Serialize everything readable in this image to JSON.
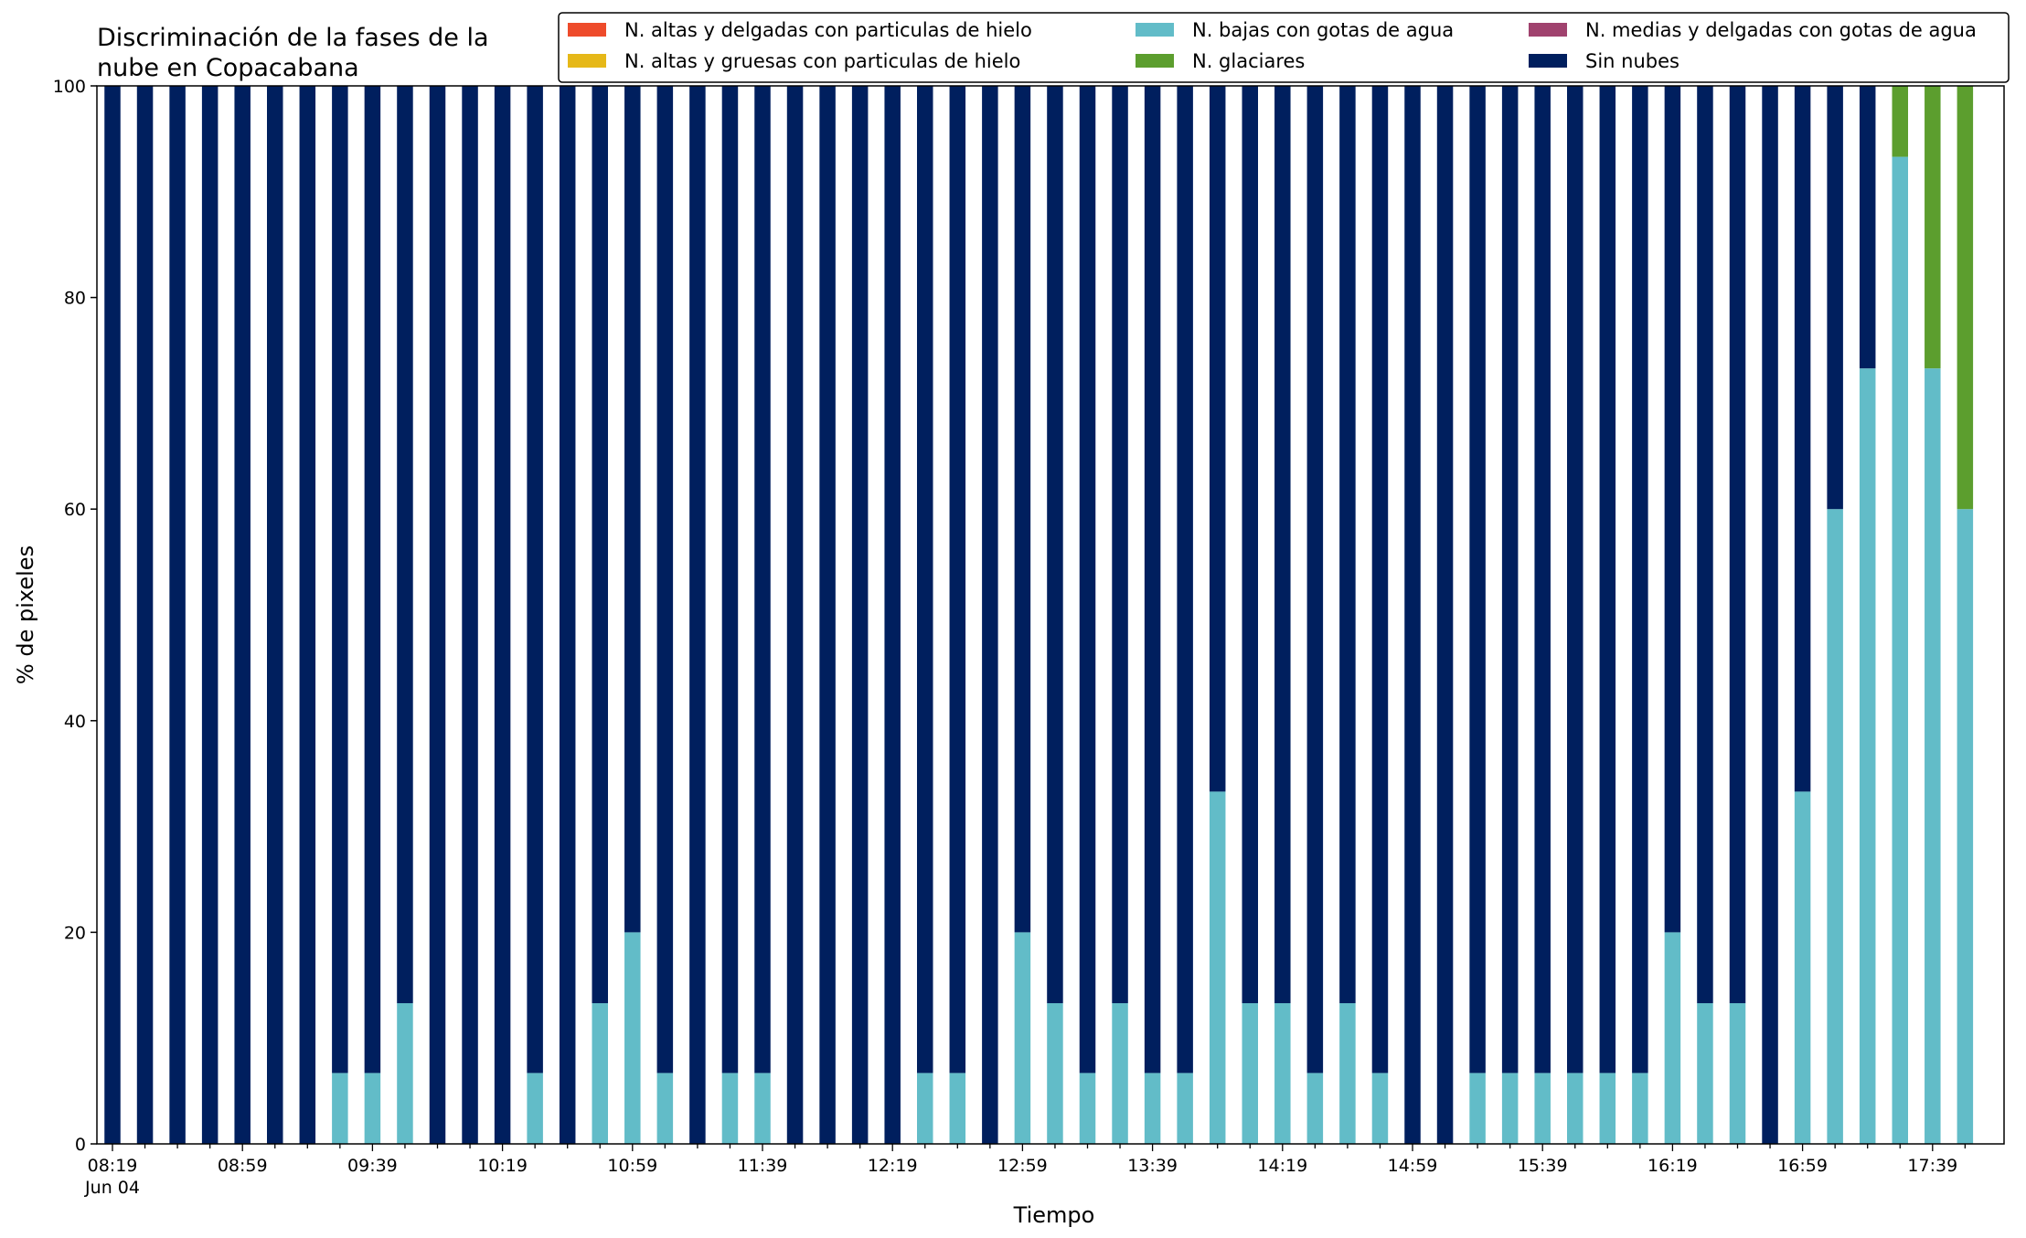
{
  "chart_data": {
    "type": "bar",
    "stacked": true,
    "title_lines": [
      "Discriminación de la fases de la",
      "nube en Copacabana"
    ],
    "xlabel": "Tiempo",
    "ylabel": "% de pixeles",
    "ylim": [
      0,
      100
    ],
    "yticks": [
      "0",
      "20",
      "40",
      "60",
      "80",
      "100"
    ],
    "grid": false,
    "legend_position": "top-right",
    "date_label": "Jun 04",
    "x_tick_labels": [
      "08:19",
      "08:59",
      "09:39",
      "10:19",
      "10:59",
      "11:39",
      "12:19",
      "12:59",
      "13:39",
      "14:19",
      "14:59",
      "15:39",
      "16:19",
      "16:59",
      "17:39"
    ],
    "categories": [
      "08:19",
      "08:29",
      "08:39",
      "08:49",
      "08:59",
      "09:09",
      "09:19",
      "09:29",
      "09:39",
      "09:49",
      "09:59",
      "10:09",
      "10:19",
      "10:29",
      "10:39",
      "10:49",
      "10:59",
      "11:09",
      "11:19",
      "11:29",
      "11:39",
      "11:49",
      "11:59",
      "12:09",
      "12:19",
      "12:29",
      "12:39",
      "12:49",
      "12:59",
      "13:09",
      "13:19",
      "13:29",
      "13:39",
      "13:49",
      "13:59",
      "14:09",
      "14:19",
      "14:29",
      "14:39",
      "14:49",
      "14:59",
      "15:09",
      "15:19",
      "15:29",
      "15:39",
      "15:49",
      "15:59",
      "16:09",
      "16:19",
      "16:29",
      "16:39",
      "16:49",
      "16:59",
      "17:09",
      "17:19",
      "17:29",
      "17:39",
      "17:49"
    ],
    "series": [
      {
        "name": "N. altas y delgadas con particulas de hielo",
        "color": "#ee4b2b",
        "values": [
          0,
          0,
          0,
          0,
          0,
          0,
          0,
          0,
          0,
          0,
          0,
          0,
          0,
          0,
          0,
          0,
          0,
          0,
          0,
          0,
          0,
          0,
          0,
          0,
          0,
          0,
          0,
          0,
          0,
          0,
          0,
          0,
          0,
          0,
          0,
          0,
          0,
          0,
          0,
          0,
          0,
          0,
          0,
          0,
          0,
          0,
          0,
          0,
          0,
          0,
          0,
          0,
          0,
          0,
          0,
          0,
          0,
          0
        ]
      },
      {
        "name": "N. altas y gruesas con particulas de hielo",
        "color": "#e6b818",
        "values": [
          0,
          0,
          0,
          0,
          0,
          0,
          0,
          0,
          0,
          0,
          0,
          0,
          0,
          0,
          0,
          0,
          0,
          0,
          0,
          0,
          0,
          0,
          0,
          0,
          0,
          0,
          0,
          0,
          0,
          0,
          0,
          0,
          0,
          0,
          0,
          0,
          0,
          0,
          0,
          0,
          0,
          0,
          0,
          0,
          0,
          0,
          0,
          0,
          0,
          0,
          0,
          0,
          0,
          0,
          0,
          0,
          0,
          0
        ]
      },
      {
        "name": "N. bajas con gotas de agua",
        "color": "#62bcc8",
        "values": [
          0,
          0,
          0,
          0,
          0,
          0,
          0,
          6.7,
          6.7,
          13.3,
          0,
          0,
          0,
          6.7,
          0,
          13.3,
          20,
          6.7,
          0,
          6.7,
          6.7,
          0,
          0,
          0,
          0,
          6.7,
          6.7,
          0,
          20,
          13.3,
          6.7,
          13.3,
          6.7,
          6.7,
          33.3,
          13.3,
          13.3,
          6.7,
          13.3,
          6.7,
          0,
          0,
          6.7,
          6.7,
          6.7,
          6.7,
          6.7,
          6.7,
          20,
          13.3,
          13.3,
          0,
          33.3,
          60,
          73.3,
          93.3,
          73.3,
          60
        ]
      },
      {
        "name": "N. glaciares",
        "color": "#5c9e2e",
        "values": [
          0,
          0,
          0,
          0,
          0,
          0,
          0,
          0,
          0,
          0,
          0,
          0,
          0,
          0,
          0,
          0,
          0,
          0,
          0,
          0,
          0,
          0,
          0,
          0,
          0,
          0,
          0,
          0,
          0,
          0,
          0,
          0,
          0,
          0,
          0,
          0,
          0,
          0,
          0,
          0,
          0,
          0,
          0,
          0,
          0,
          0,
          0,
          0,
          0,
          0,
          0,
          0,
          0,
          0,
          0,
          6.7,
          26.7,
          40
        ]
      },
      {
        "name": "N. medias y delgadas con gotas de agua",
        "color": "#a0426e",
        "values": [
          0,
          0,
          0,
          0,
          0,
          0,
          0,
          0,
          0,
          0,
          0,
          0,
          0,
          0,
          0,
          0,
          0,
          0,
          0,
          0,
          0,
          0,
          0,
          0,
          0,
          0,
          0,
          0,
          0,
          0,
          0,
          0,
          0,
          0,
          0,
          0,
          0,
          0,
          0,
          0,
          0,
          0,
          0,
          0,
          0,
          0,
          0,
          0,
          0,
          0,
          0,
          0,
          0,
          0,
          0,
          0,
          0,
          0
        ]
      },
      {
        "name": "Sin nubes",
        "color": "#001f5e",
        "values": [
          100,
          100,
          100,
          100,
          100,
          100,
          100,
          93.3,
          93.3,
          86.7,
          100,
          100,
          100,
          93.3,
          100,
          86.7,
          80,
          93.3,
          100,
          93.3,
          93.3,
          100,
          100,
          100,
          100,
          93.3,
          93.3,
          100,
          80,
          86.7,
          93.3,
          86.7,
          93.3,
          93.3,
          66.7,
          86.7,
          86.7,
          93.3,
          86.7,
          93.3,
          100,
          100,
          93.3,
          93.3,
          93.3,
          93.3,
          93.3,
          93.3,
          80,
          86.7,
          86.7,
          100,
          66.7,
          40,
          26.7,
          0,
          0,
          0
        ]
      }
    ]
  }
}
